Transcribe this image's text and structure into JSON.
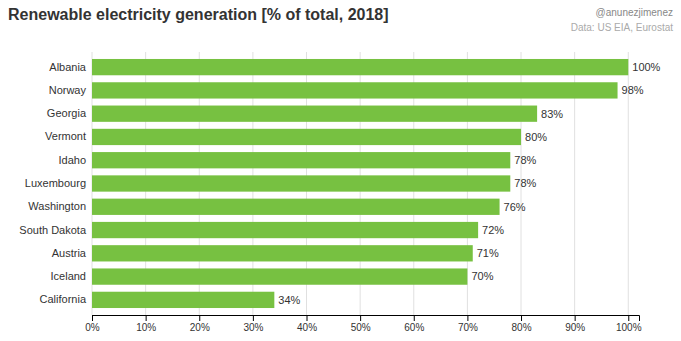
{
  "chart_data": {
    "type": "bar",
    "orientation": "horizontal",
    "title": "Renewable electricity generation [% of total, 2018]",
    "subtitle": [
      "@anunezjimenez",
      "Data: US EIA, Eurostat"
    ],
    "categories": [
      "Albania",
      "Norway",
      "Georgia",
      "Vermont",
      "Idaho",
      "Luxembourg",
      "Washington",
      "South Dakota",
      "Austria",
      "Iceland",
      "California"
    ],
    "values": [
      100,
      98,
      83,
      80,
      78,
      78,
      76,
      72,
      71,
      70,
      34
    ],
    "value_labels": [
      "100%",
      "98%",
      "83%",
      "80%",
      "78%",
      "78%",
      "76%",
      "72%",
      "71%",
      "70%",
      "34%"
    ],
    "data_labels": true,
    "color": "#77c141",
    "xlim": [
      0,
      102
    ],
    "xticks": [
      {
        "value": 0,
        "label": "0%"
      },
      {
        "value": 10,
        "label": "10%"
      },
      {
        "value": 20,
        "label": "20%"
      },
      {
        "value": 30,
        "label": "30%"
      },
      {
        "value": 40,
        "label": "40%"
      },
      {
        "value": 50,
        "label": "50%"
      },
      {
        "value": 60,
        "label": "60%"
      },
      {
        "value": 70,
        "label": "70%"
      },
      {
        "value": 80,
        "label": "80%"
      },
      {
        "value": 90,
        "label": "90%"
      },
      {
        "value": 100,
        "label": "100%"
      }
    ],
    "grid": true
  }
}
